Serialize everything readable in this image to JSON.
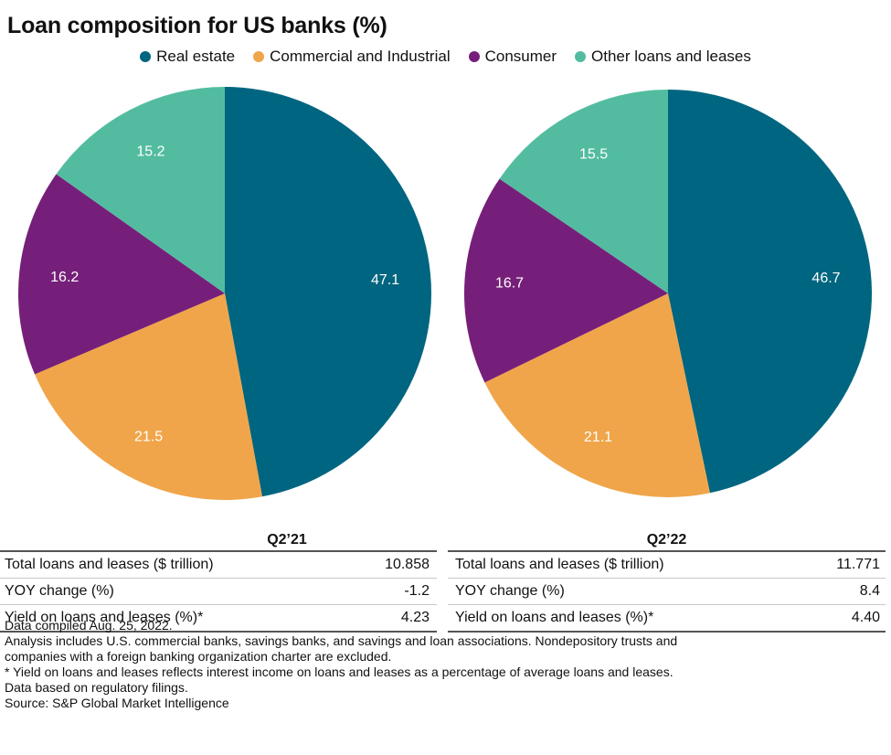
{
  "chart_data": {
    "type": "pie",
    "title": "Loan composition for US banks (%)",
    "legend": [
      {
        "name": "Real estate",
        "color": "#006580"
      },
      {
        "name": "Commercial and Industrial",
        "color": "#F0A54A"
      },
      {
        "name": "Consumer",
        "color": "#761F7A"
      },
      {
        "name": "Other loans and leases",
        "color": "#53BCA0"
      }
    ],
    "pies": [
      {
        "label": "Q2’21",
        "values": [
          {
            "category": "Real estate",
            "value": 47.1,
            "display": "47.1"
          },
          {
            "category": "Commercial and Industrial",
            "value": 21.5,
            "display": "21.5"
          },
          {
            "category": "Consumer",
            "value": 16.2,
            "display": "16.2"
          },
          {
            "category": "Other loans and leases",
            "value": 15.2,
            "display": "15.2"
          }
        ]
      },
      {
        "label": "Q2’22",
        "values": [
          {
            "category": "Real estate",
            "value": 46.7,
            "display": "46.7"
          },
          {
            "category": "Commercial and Industrial",
            "value": 21.1,
            "display": "21.1"
          },
          {
            "category": "Consumer",
            "value": 16.7,
            "display": "16.7"
          },
          {
            "category": "Other loans and leases",
            "value": 15.5,
            "display": "15.5"
          }
        ]
      }
    ]
  },
  "tables": [
    {
      "header": "Q2’21",
      "rows": [
        {
          "label": "Total loans and leases ($ trillion)",
          "value": "10.858"
        },
        {
          "label": "YOY change (%)",
          "value": "-1.2"
        },
        {
          "label": "Yield on loans and leases (%)*",
          "value": "4.23"
        }
      ]
    },
    {
      "header": "Q2’22",
      "rows": [
        {
          "label": "Total loans and leases ($ trillion)",
          "value": "11.771"
        },
        {
          "label": "YOY change (%)",
          "value": "8.4"
        },
        {
          "label": "Yield on loans and leases (%)*",
          "value": "4.40"
        }
      ]
    }
  ],
  "notes": [
    "Data compiled Aug. 25, 2022.",
    "Analysis includes U.S. commercial banks, savings banks, and savings and loan associations. Nondepository trusts and",
    "companies with a foreign banking organization charter are excluded.",
    "* Yield on loans and leases reflects interest income on loans and leases as a percentage of average loans and leases.",
    "Data based on regulatory filings.",
    "Source: S&P Global Market Intelligence"
  ]
}
